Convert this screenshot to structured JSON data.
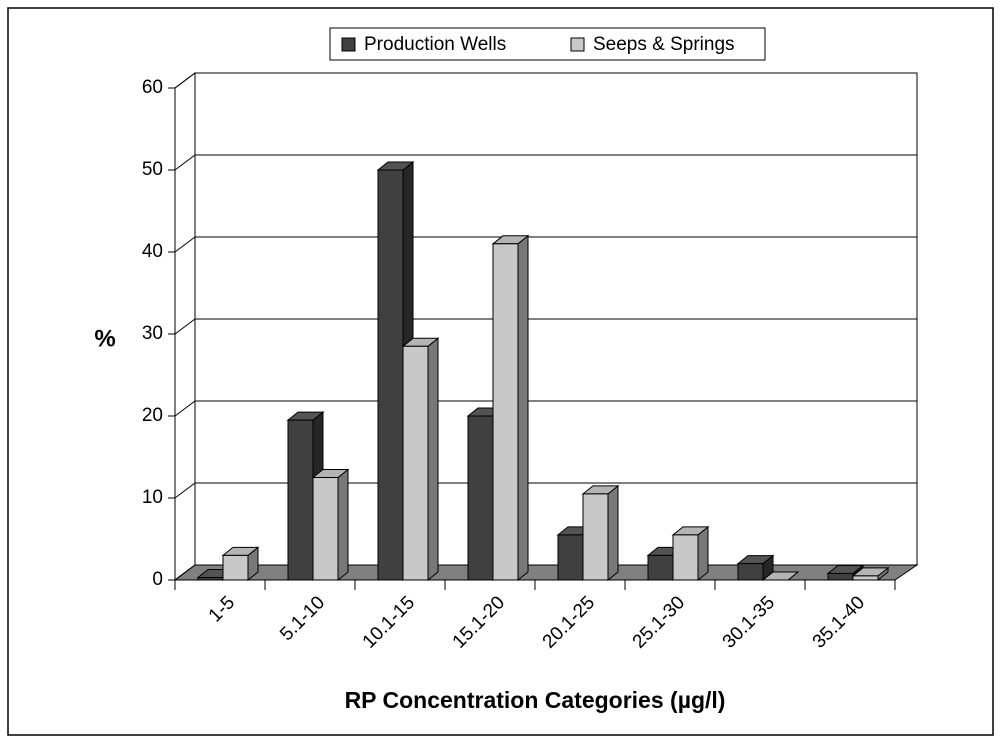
{
  "chart_data": {
    "type": "bar3d",
    "categories": [
      "1-5",
      "5.1-10",
      "10.1-15",
      "15.1-20",
      "20.1-25",
      "25.1-30",
      "30.1-35",
      "35.1-40"
    ],
    "series": [
      {
        "name": "Production Wells",
        "color": "#404040",
        "values": [
          0.3,
          19.5,
          50,
          20,
          5.5,
          3,
          2,
          0.8
        ]
      },
      {
        "name": "Seeps & Springs",
        "color": "#c8c8c8",
        "values": [
          3,
          12.5,
          28.5,
          41,
          10.5,
          5.5,
          0,
          0.5
        ]
      }
    ],
    "ylabel": "%",
    "xlabel": "RP Concentration Categories (µg/l)",
    "ylim": [
      0,
      60
    ],
    "yticks": [
      0,
      10,
      20,
      30,
      40,
      50,
      60
    ],
    "grid": true,
    "legend": "top"
  }
}
